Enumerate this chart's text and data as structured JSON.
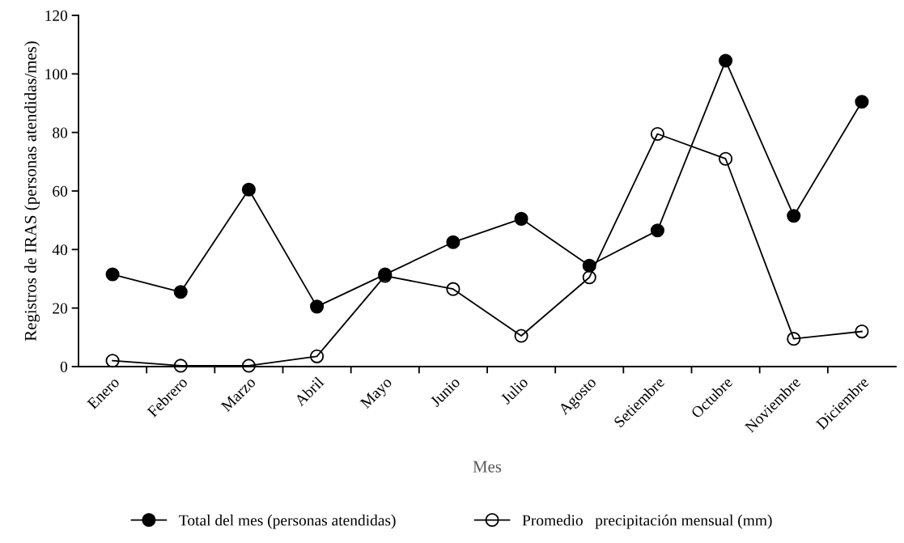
{
  "chart_data": {
    "type": "line",
    "xlabel": "Mes",
    "ylabel": "Registros de IRAS (personas atendidas/mes)",
    "categories": [
      "Enero",
      "Febrero",
      "Marzo",
      "Abril",
      "Mayo",
      "Junio",
      "Julio",
      "Agosto",
      "Setiembre",
      "Octubre",
      "Noviembre",
      "Diciembre"
    ],
    "series": [
      {
        "name": "Total del mes (personas atendidas)",
        "color": "#000000",
        "marker": "circle",
        "values": [
          31.5,
          25.5,
          60.5,
          20.5,
          31.5,
          42.5,
          50.5,
          34.5,
          46.5,
          104.5,
          51.5,
          90.5
        ]
      },
      {
        "name": "Promedio   precipitación mensual (mm)",
        "color": "#000000",
        "marker": "circle_open",
        "values": [
          2,
          0.3,
          0.3,
          3.5,
          31,
          26.5,
          10.5,
          30.5,
          79.5,
          71,
          9.5,
          12
        ]
      }
    ],
    "ylim": [
      0,
      120
    ],
    "yticks": [
      0,
      20,
      40,
      60,
      80,
      100,
      120
    ],
    "grid": false,
    "legend": "bottom",
    "line_style": "solid"
  }
}
